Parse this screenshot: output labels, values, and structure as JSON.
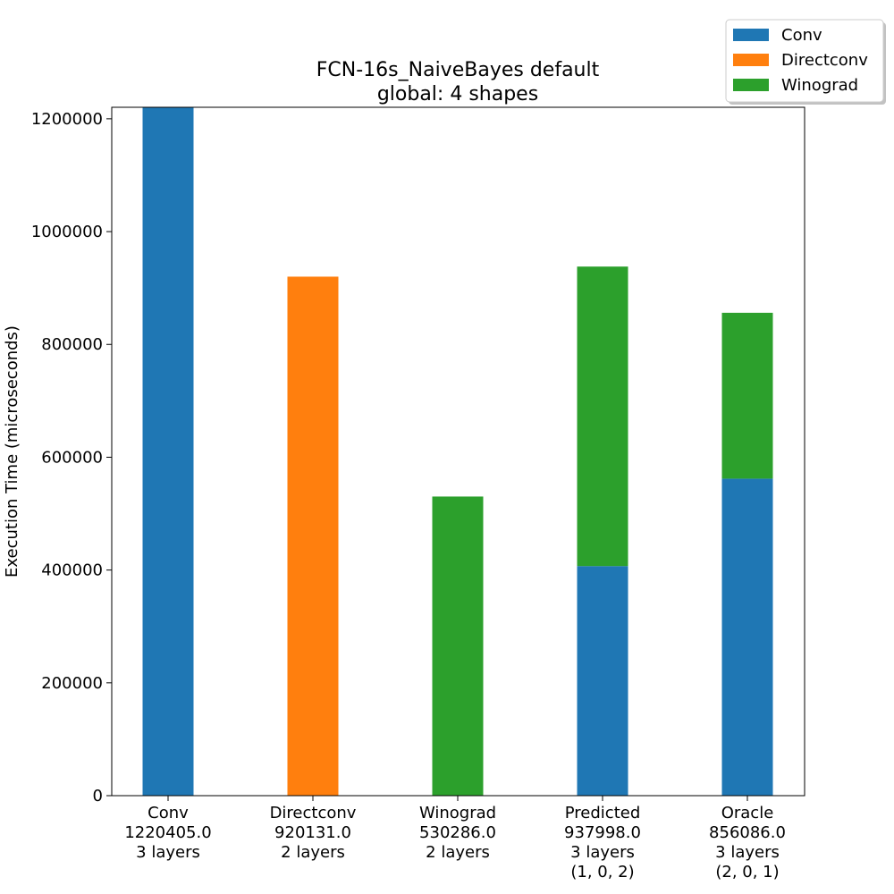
{
  "chart_data": {
    "type": "bar",
    "stacked": true,
    "title": "FCN-16s_NaiveBayes default",
    "subtitle": "global: 4 shapes",
    "xlabel": "",
    "ylabel": "Execution Time (microseconds)",
    "ylim": [
      0,
      1220405
    ],
    "yticks": [
      0,
      200000,
      400000,
      600000,
      800000,
      1000000,
      1200000
    ],
    "ytick_labels": [
      "0",
      "200000",
      "400000",
      "600000",
      "800000",
      "1000000",
      "1200000"
    ],
    "grid": false,
    "legend_position": "top-right",
    "categories": [
      [
        "Conv",
        "1220405.0",
        "3 layers"
      ],
      [
        "Directconv",
        "920131.0",
        "2 layers"
      ],
      [
        "Winograd",
        "530286.0",
        "2 layers"
      ],
      [
        "Predicted",
        "937998.0",
        "3 layers",
        "(1, 0, 2)"
      ],
      [
        "Oracle",
        "856086.0",
        "3 layers",
        "(2, 0, 1)"
      ]
    ],
    "series": [
      {
        "name": "Conv",
        "color": "#1f77b4",
        "values": [
          1220405,
          0,
          0,
          407000,
          562000
        ]
      },
      {
        "name": "Directconv",
        "color": "#ff7f0e",
        "values": [
          0,
          920131,
          0,
          0,
          0
        ]
      },
      {
        "name": "Winograd",
        "color": "#2ca02c",
        "values": [
          0,
          0,
          530286,
          530998,
          294086
        ]
      }
    ]
  }
}
